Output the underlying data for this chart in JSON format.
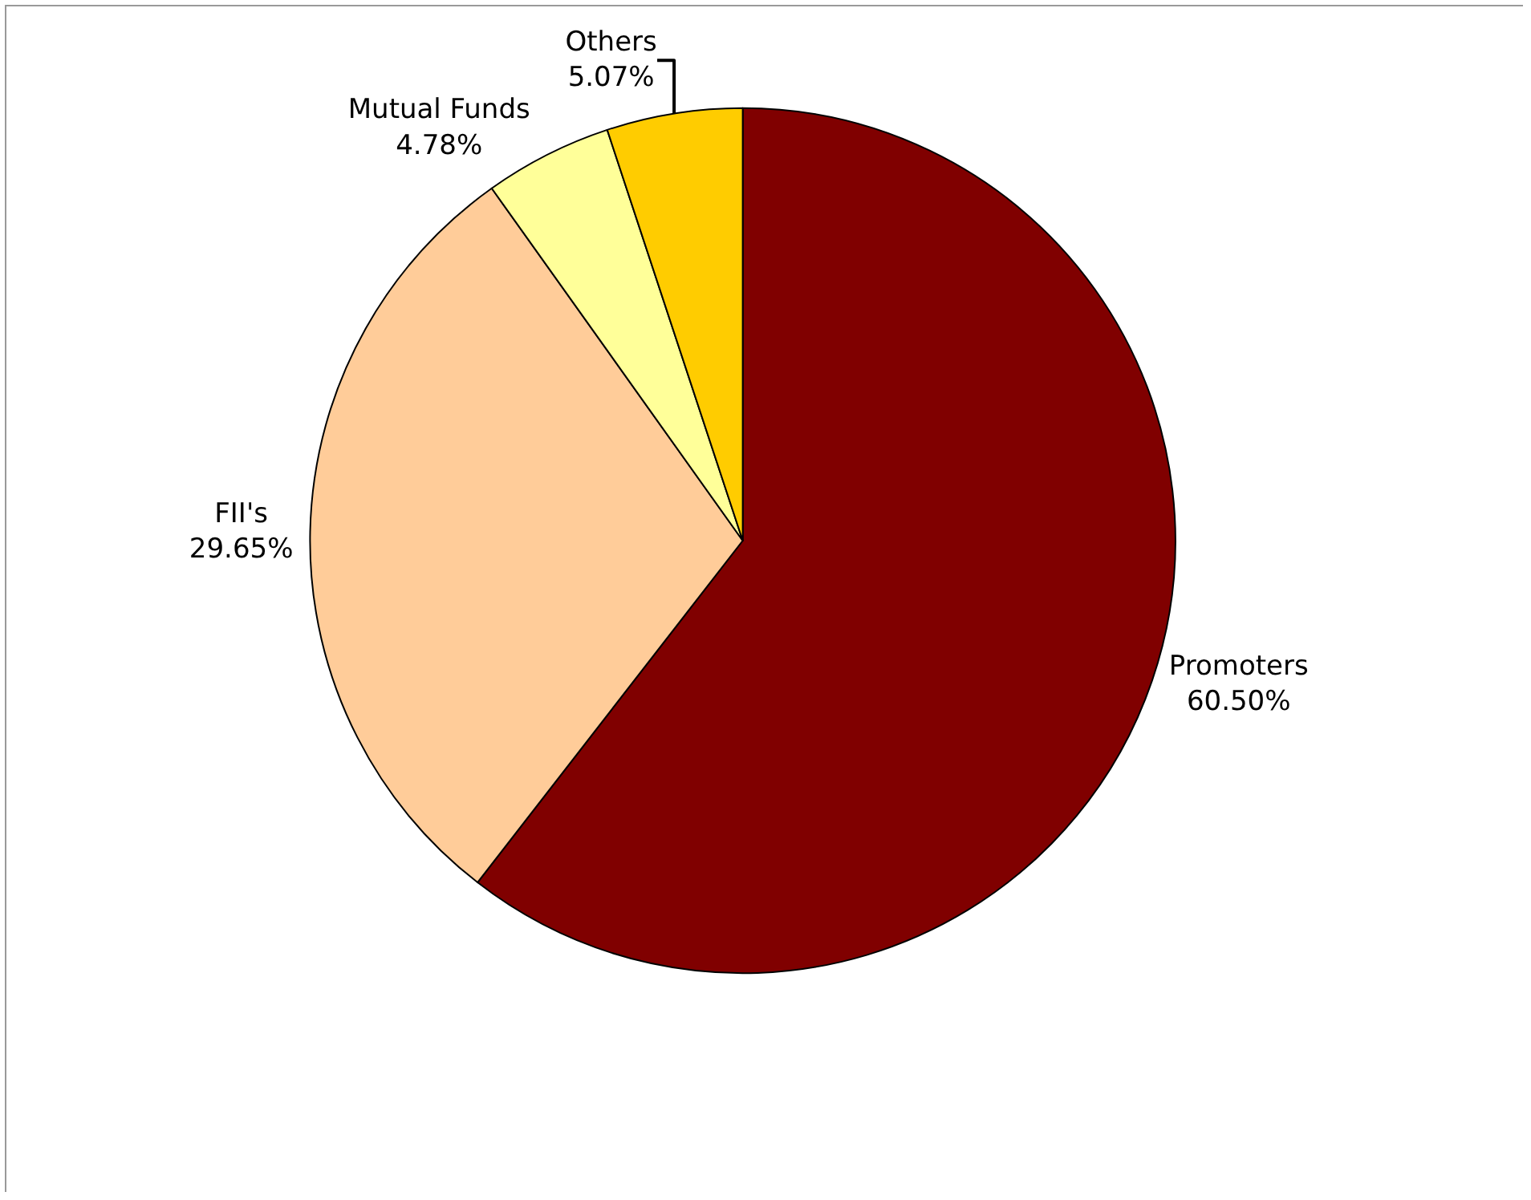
{
  "chart_data": {
    "type": "pie",
    "categories": [
      "Promoters",
      "FII's",
      "Mutual Funds",
      "Others"
    ],
    "values": [
      60.5,
      29.65,
      4.78,
      5.07
    ],
    "value_labels": [
      "60.50%",
      "29.65%",
      "4.78%",
      "5.07%"
    ],
    "colors": [
      "#800000",
      "#ffcc99",
      "#ffff99",
      "#ffcc00"
    ]
  }
}
